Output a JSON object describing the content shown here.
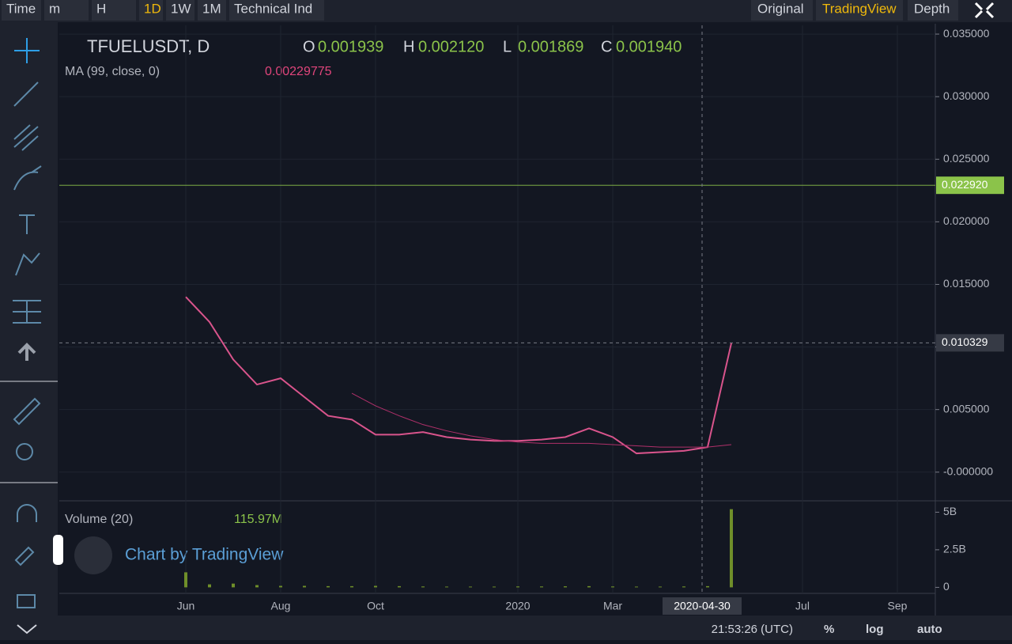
{
  "toolbar": {
    "left": [
      "Time",
      "m",
      "H",
      "1D",
      "1W",
      "1M",
      "Technical Ind"
    ],
    "active": "1D",
    "right": [
      "Original",
      "TradingView",
      "Depth"
    ],
    "right_active": "TradingView"
  },
  "footer": {
    "clock": "21:53:26 (UTC)",
    "buttons": [
      "%",
      "log",
      "auto"
    ]
  },
  "watermark": "Chart by TradingView",
  "chart_data": {
    "type": "line",
    "title": "TFUELUSDT, D",
    "ohlc": [
      {
        "name": "O",
        "label": "0.001939"
      },
      {
        "name": "H",
        "label": "0.002120"
      },
      {
        "name": "L",
        "label": "0.001869"
      },
      {
        "name": "C",
        "label": "0.001940"
      }
    ],
    "categories": [
      null,
      "Jun",
      null,
      null,
      null,
      "Aug",
      null,
      null,
      null,
      "Oct",
      null,
      null,
      null,
      null,
      null,
      "2020",
      null,
      null,
      null,
      "Mar",
      null,
      null,
      null,
      null,
      null,
      null,
      null,
      "Jul",
      null,
      null,
      null,
      "Sep",
      null
    ],
    "series": [
      {
        "name": "TFUELUSDT, D",
        "color": "#d9548c",
        "values": [
          null,
          0.014,
          0.012,
          0.009,
          0.007,
          0.0075,
          0.006,
          0.0045,
          0.0042,
          0.003,
          0.003,
          0.0032,
          0.0028,
          0.0026,
          0.0025,
          0.0025,
          0.0026,
          0.0028,
          0.0035,
          0.0028,
          0.0015,
          0.0016,
          0.0017,
          0.002,
          0.0103,
          null,
          null,
          null,
          null,
          null,
          null,
          null,
          null
        ]
      },
      {
        "name": "MA (99, close, 0)",
        "legend_value": "0.00229775",
        "color": "#b0306a",
        "values": [
          null,
          null,
          null,
          null,
          null,
          null,
          null,
          null,
          0.0063,
          0.0053,
          0.0045,
          0.0038,
          0.0033,
          0.0029,
          0.0026,
          0.0024,
          0.0023,
          0.0023,
          0.0023,
          0.0022,
          0.0021,
          0.002,
          0.002,
          0.002,
          0.0022,
          null,
          null,
          null,
          null,
          null,
          null,
          null,
          null
        ]
      },
      {
        "name": "Volume (20)",
        "legend_value": "115.97M",
        "color": "#6f8f2a",
        "axis": "y2",
        "values": [
          null,
          1000000000,
          200000000,
          250000000,
          150000000,
          100000000,
          100000000,
          80000000,
          80000000,
          100000000,
          80000000,
          60000000,
          50000000,
          50000000,
          50000000,
          60000000,
          60000000,
          70000000,
          80000000,
          60000000,
          50000000,
          50000000,
          60000000,
          80000000,
          5200000000,
          null,
          null,
          null,
          null,
          null,
          null,
          null,
          null
        ]
      }
    ],
    "ylim": [
      -0.0021,
      0.0357
    ],
    "yticks": [
      {
        "value": 0,
        "label": "-0.000000"
      },
      {
        "value": 0.005,
        "label": "0.005000"
      },
      {
        "value": 0.01,
        "label": "0.010000"
      },
      {
        "value": 0.015,
        "label": "0.015000"
      },
      {
        "value": 0.02,
        "label": "0.020000"
      },
      {
        "value": 0.025,
        "label": "0.025000"
      },
      {
        "value": 0.03,
        "label": "0.030000"
      },
      {
        "value": 0.035,
        "label": "0.035000"
      }
    ],
    "y2lim": [
      -400000000,
      5600000000
    ],
    "y2ticks": [
      0,
      {
        "value": 2500000000,
        "label": "2.5B"
      },
      {
        "value": 5000000000,
        "label": "5B"
      }
    ],
    "last_price": {
      "value": 0.02292,
      "label": "0.022920"
    },
    "crosshair": {
      "value": 0.010329,
      "label": "0.010329",
      "date": "2020-04-30"
    },
    "grid": true
  }
}
